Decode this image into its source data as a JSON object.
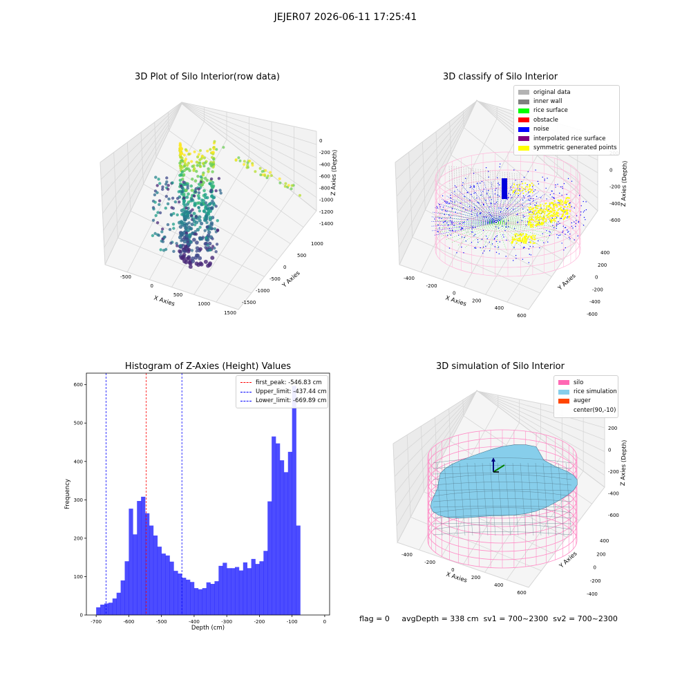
{
  "suptitle": "JEJER07 2026-06-11 17:25:41",
  "status": {
    "flag": "flag = 0",
    "avg_depth": "avgDepth = 338 cm",
    "sv1": "sv1 = 700~2300",
    "sv2": "sv2 = 700~2300"
  },
  "panels": {
    "raw": {
      "title": "3D Plot of Silo Interior(row data)",
      "xlabel": "X Axies",
      "ylabel": "Y Axies",
      "zlabel": "Z Axies (Depth)",
      "xticks": [
        "-500",
        "0",
        "500",
        "1000",
        "1500"
      ],
      "yticks": [
        "1000",
        "500",
        "0",
        "-500",
        "-1000",
        "-1500"
      ],
      "zticks": [
        "0",
        "-200",
        "-400",
        "-600",
        "-800",
        "-1000",
        "-1200",
        "-1400"
      ]
    },
    "classify": {
      "title": "3D classify of Silo Interior",
      "xlabel": "X Axies",
      "ylabel": "Y Axies",
      "zlabel": "Z Axies (Depth)",
      "xticks": [
        "-400",
        "-200",
        "0",
        "200",
        "400",
        "600"
      ],
      "yticks": [
        "400",
        "200",
        "0",
        "-200",
        "-400",
        "-600"
      ],
      "zticks": [
        "200",
        "0",
        "-200",
        "-400",
        "-600"
      ],
      "legend": [
        {
          "label": "original data",
          "color": "#b3b3b3"
        },
        {
          "label": "inner wall",
          "color": "#808080"
        },
        {
          "label": "rice surface",
          "color": "#00ff00"
        },
        {
          "label": "obstacle",
          "color": "#ff0000"
        },
        {
          "label": "noise",
          "color": "#0000ff"
        },
        {
          "label": "interpolated rice surface",
          "color": "#800080"
        },
        {
          "label": "symmetric generated points",
          "color": "#ffff00"
        }
      ]
    },
    "simulation": {
      "title": "3D simulation of Silo Interior",
      "xlabel": "X Axies",
      "ylabel": "Y Axies",
      "zlabel": "Z Axies (Depth)",
      "xticks": [
        "-400",
        "-200",
        "0",
        "200",
        "400",
        "600"
      ],
      "yticks": [
        "400",
        "200",
        "0",
        "-200",
        "-400"
      ],
      "zticks": [
        "200",
        "0",
        "-200",
        "-400",
        "-600"
      ],
      "legend": [
        {
          "label": "silo",
          "color": "#ff69b4"
        },
        {
          "label": "rice simulation",
          "color": "#87ceeb"
        },
        {
          "label": "auger",
          "color": "#ff4500"
        },
        {
          "label": "center(90,-10)",
          "color": "none"
        }
      ]
    }
  },
  "chart_data": {
    "type": "bar",
    "title": "Histogram of Z-Axies (Height) Values",
    "xlabel": "Depth (cm)",
    "ylabel": "Frequency",
    "xlim": [
      -730,
      15
    ],
    "ylim": [
      0,
      630
    ],
    "xticks": [
      -700,
      -600,
      -500,
      -400,
      -300,
      -200,
      -100,
      0
    ],
    "yticks": [
      0,
      100,
      200,
      300,
      400,
      500,
      600
    ],
    "bin_start": -700,
    "bin_width": 12.5,
    "color": "#0000ff",
    "values": [
      20,
      27,
      30,
      32,
      43,
      58,
      90,
      140,
      277,
      210,
      297,
      308,
      265,
      233,
      207,
      178,
      160,
      155,
      139,
      115,
      108,
      97,
      92,
      86,
      70,
      67,
      70,
      85,
      81,
      88,
      128,
      136,
      122,
      122,
      125,
      116,
      137,
      122,
      146,
      133,
      140,
      167,
      296,
      465,
      447,
      403,
      372,
      425,
      597,
      233
    ],
    "lines": [
      {
        "label": "first_peak: -546.83 cm",
        "x": -546.83,
        "color": "#ff0000"
      },
      {
        "label": "Upper_limit: -437.44 cm",
        "x": -437.44,
        "color": "#0000ff"
      },
      {
        "label": "Lower_limit: -669.89 cm",
        "x": -669.89,
        "color": "#0000ff"
      }
    ]
  }
}
